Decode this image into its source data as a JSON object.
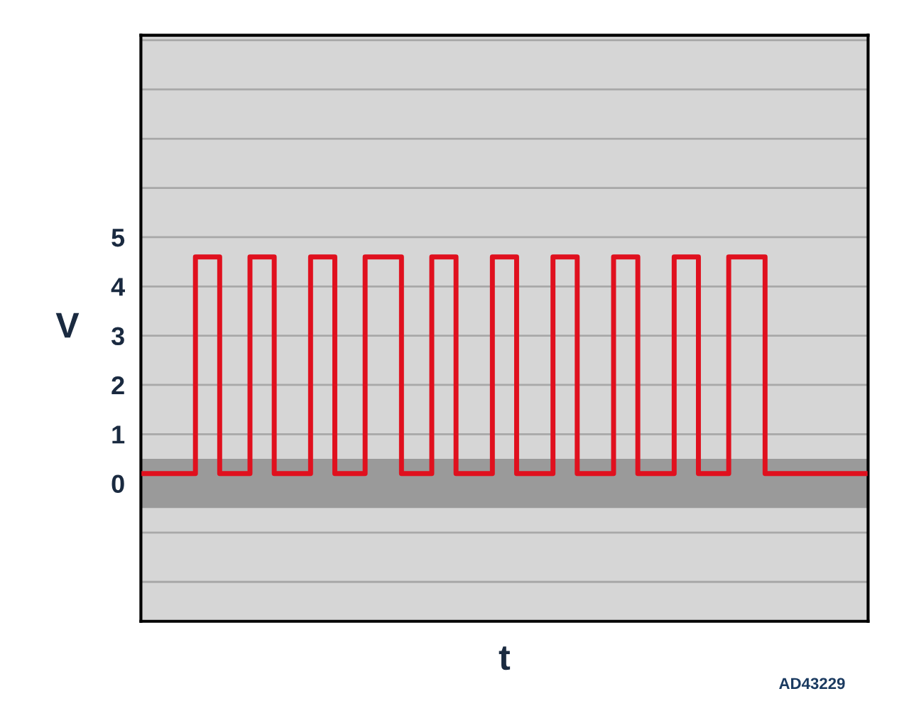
{
  "chart_data": {
    "type": "step",
    "ylabel": "V",
    "xlabel": "t",
    "annotations": [
      "AD43229"
    ],
    "categories": [
      null,
      null,
      null,
      null,
      null,
      null,
      null,
      null,
      null,
      null,
      null,
      null,
      null,
      null,
      null,
      null,
      null,
      null,
      null,
      null,
      null,
      null,
      null,
      null,
      null,
      null,
      null,
      null,
      null,
      null,
      null,
      null,
      null,
      null,
      null,
      null,
      null,
      null,
      null,
      null,
      null,
      null,
      null,
      null,
      null,
      null,
      null,
      null,
      null,
      null,
      null,
      null,
      null,
      null,
      null,
      null,
      null,
      null,
      null,
      null,
      null,
      null,
      null,
      null,
      null,
      null,
      null,
      null,
      null,
      null,
      null,
      null,
      null,
      null,
      null,
      null,
      null,
      null,
      null,
      null,
      null,
      null,
      null,
      null,
      null,
      null,
      null,
      null,
      null,
      null,
      null,
      null,
      null,
      null,
      null,
      null,
      null,
      null,
      null,
      null,
      null,
      null,
      null,
      null,
      null,
      null,
      null,
      null,
      null,
      null,
      null,
      null,
      null,
      null,
      null,
      null,
      null,
      null,
      null,
      null
    ],
    "series": [
      {
        "color": "#e0101e",
        "values": [
          0.2,
          0.2,
          0.2,
          0.2,
          0.2,
          0.2,
          0.2,
          0.2,
          0.2,
          4.6,
          4.6,
          4.6,
          4.6,
          0.2,
          0.2,
          0.2,
          0.2,
          0.2,
          4.6,
          4.6,
          4.6,
          4.6,
          0.2,
          0.2,
          0.2,
          0.2,
          0.2,
          0.2,
          4.6,
          4.6,
          4.6,
          4.6,
          0.2,
          0.2,
          0.2,
          0.2,
          0.2,
          4.6,
          4.6,
          4.6,
          4.6,
          4.6,
          4.6,
          0.2,
          0.2,
          0.2,
          0.2,
          0.2,
          4.6,
          4.6,
          4.6,
          4.6,
          0.2,
          0.2,
          0.2,
          0.2,
          0.2,
          0.2,
          4.6,
          4.6,
          4.6,
          4.6,
          0.2,
          0.2,
          0.2,
          0.2,
          0.2,
          0.2,
          4.6,
          4.6,
          4.6,
          4.6,
          0.2,
          0.2,
          0.2,
          0.2,
          0.2,
          0.2,
          4.6,
          4.6,
          4.6,
          4.6,
          0.2,
          0.2,
          0.2,
          0.2,
          0.2,
          0.2,
          4.6,
          4.6,
          4.6,
          4.6,
          0.2,
          0.2,
          0.2,
          0.2,
          0.2,
          4.6,
          4.6,
          4.6,
          4.6,
          4.6,
          4.6,
          0.2,
          0.2,
          0.2,
          0.2,
          0.2,
          0.2,
          0.2,
          0.2,
          0.2,
          0.2,
          0.2,
          0.2,
          0.2,
          0.2,
          0.2,
          0.2,
          0.2
        ]
      }
    ],
    "ylim": [
      -2.8,
      9.1
    ],
    "yticks": [
      {
        "value": -2,
        "label": null
      },
      {
        "value": -1,
        "label": null
      },
      0,
      1,
      2,
      3,
      4,
      5,
      {
        "value": 6,
        "label": null
      },
      {
        "value": 7,
        "label": null
      },
      {
        "value": 8,
        "label": null
      },
      {
        "value": 9,
        "label": null
      }
    ],
    "bands": [
      {
        "axis": "y",
        "from": -0.5,
        "to": 0.5,
        "color": "#9a9a9a"
      }
    ],
    "grid": "y",
    "line_style": "solid",
    "marker": "none",
    "legend": false
  }
}
